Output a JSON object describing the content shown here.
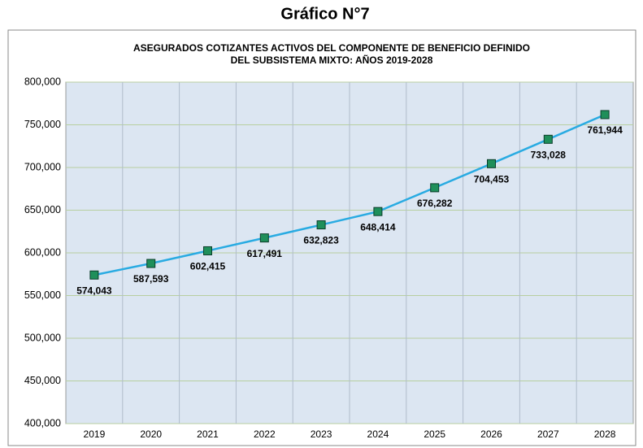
{
  "heading": "Gráfico N°7",
  "chart_data": {
    "type": "line",
    "title": [
      "ASEGURADOS COTIZANTES ACTIVOS DEL COMPONENTE DE BENEFICIO DEFINIDO",
      "DEL SUBSISTEMA MIXTO: AÑOS 2019-2028"
    ],
    "categories": [
      "2019",
      "2020",
      "2021",
      "2022",
      "2023",
      "2024",
      "2025",
      "2026",
      "2027",
      "2028"
    ],
    "values": [
      574043,
      587593,
      602415,
      617491,
      632823,
      648414,
      676282,
      704453,
      733028,
      761944
    ],
    "value_labels": [
      "574,043",
      "587,593",
      "602,415",
      "617,491",
      "632,823",
      "648,414",
      "676,282",
      "704,453",
      "733,028",
      "761,944"
    ],
    "color": "#29abe2",
    "marker_color": "#1f8f5a",
    "ylim": [
      400000,
      800000
    ],
    "yticks": [
      {
        "value": 400000,
        "label": "400,000"
      },
      {
        "value": 450000,
        "label": "450,000"
      },
      {
        "value": 500000,
        "label": "500,000"
      },
      {
        "value": 550000,
        "label": "550,000"
      },
      {
        "value": 600000,
        "label": "600,000"
      },
      {
        "value": 650000,
        "label": "650,000"
      },
      {
        "value": 700000,
        "label": "700,000"
      },
      {
        "value": 750000,
        "label": "750,000"
      },
      {
        "value": 800000,
        "label": "800,000"
      }
    ],
    "grid": true
  }
}
